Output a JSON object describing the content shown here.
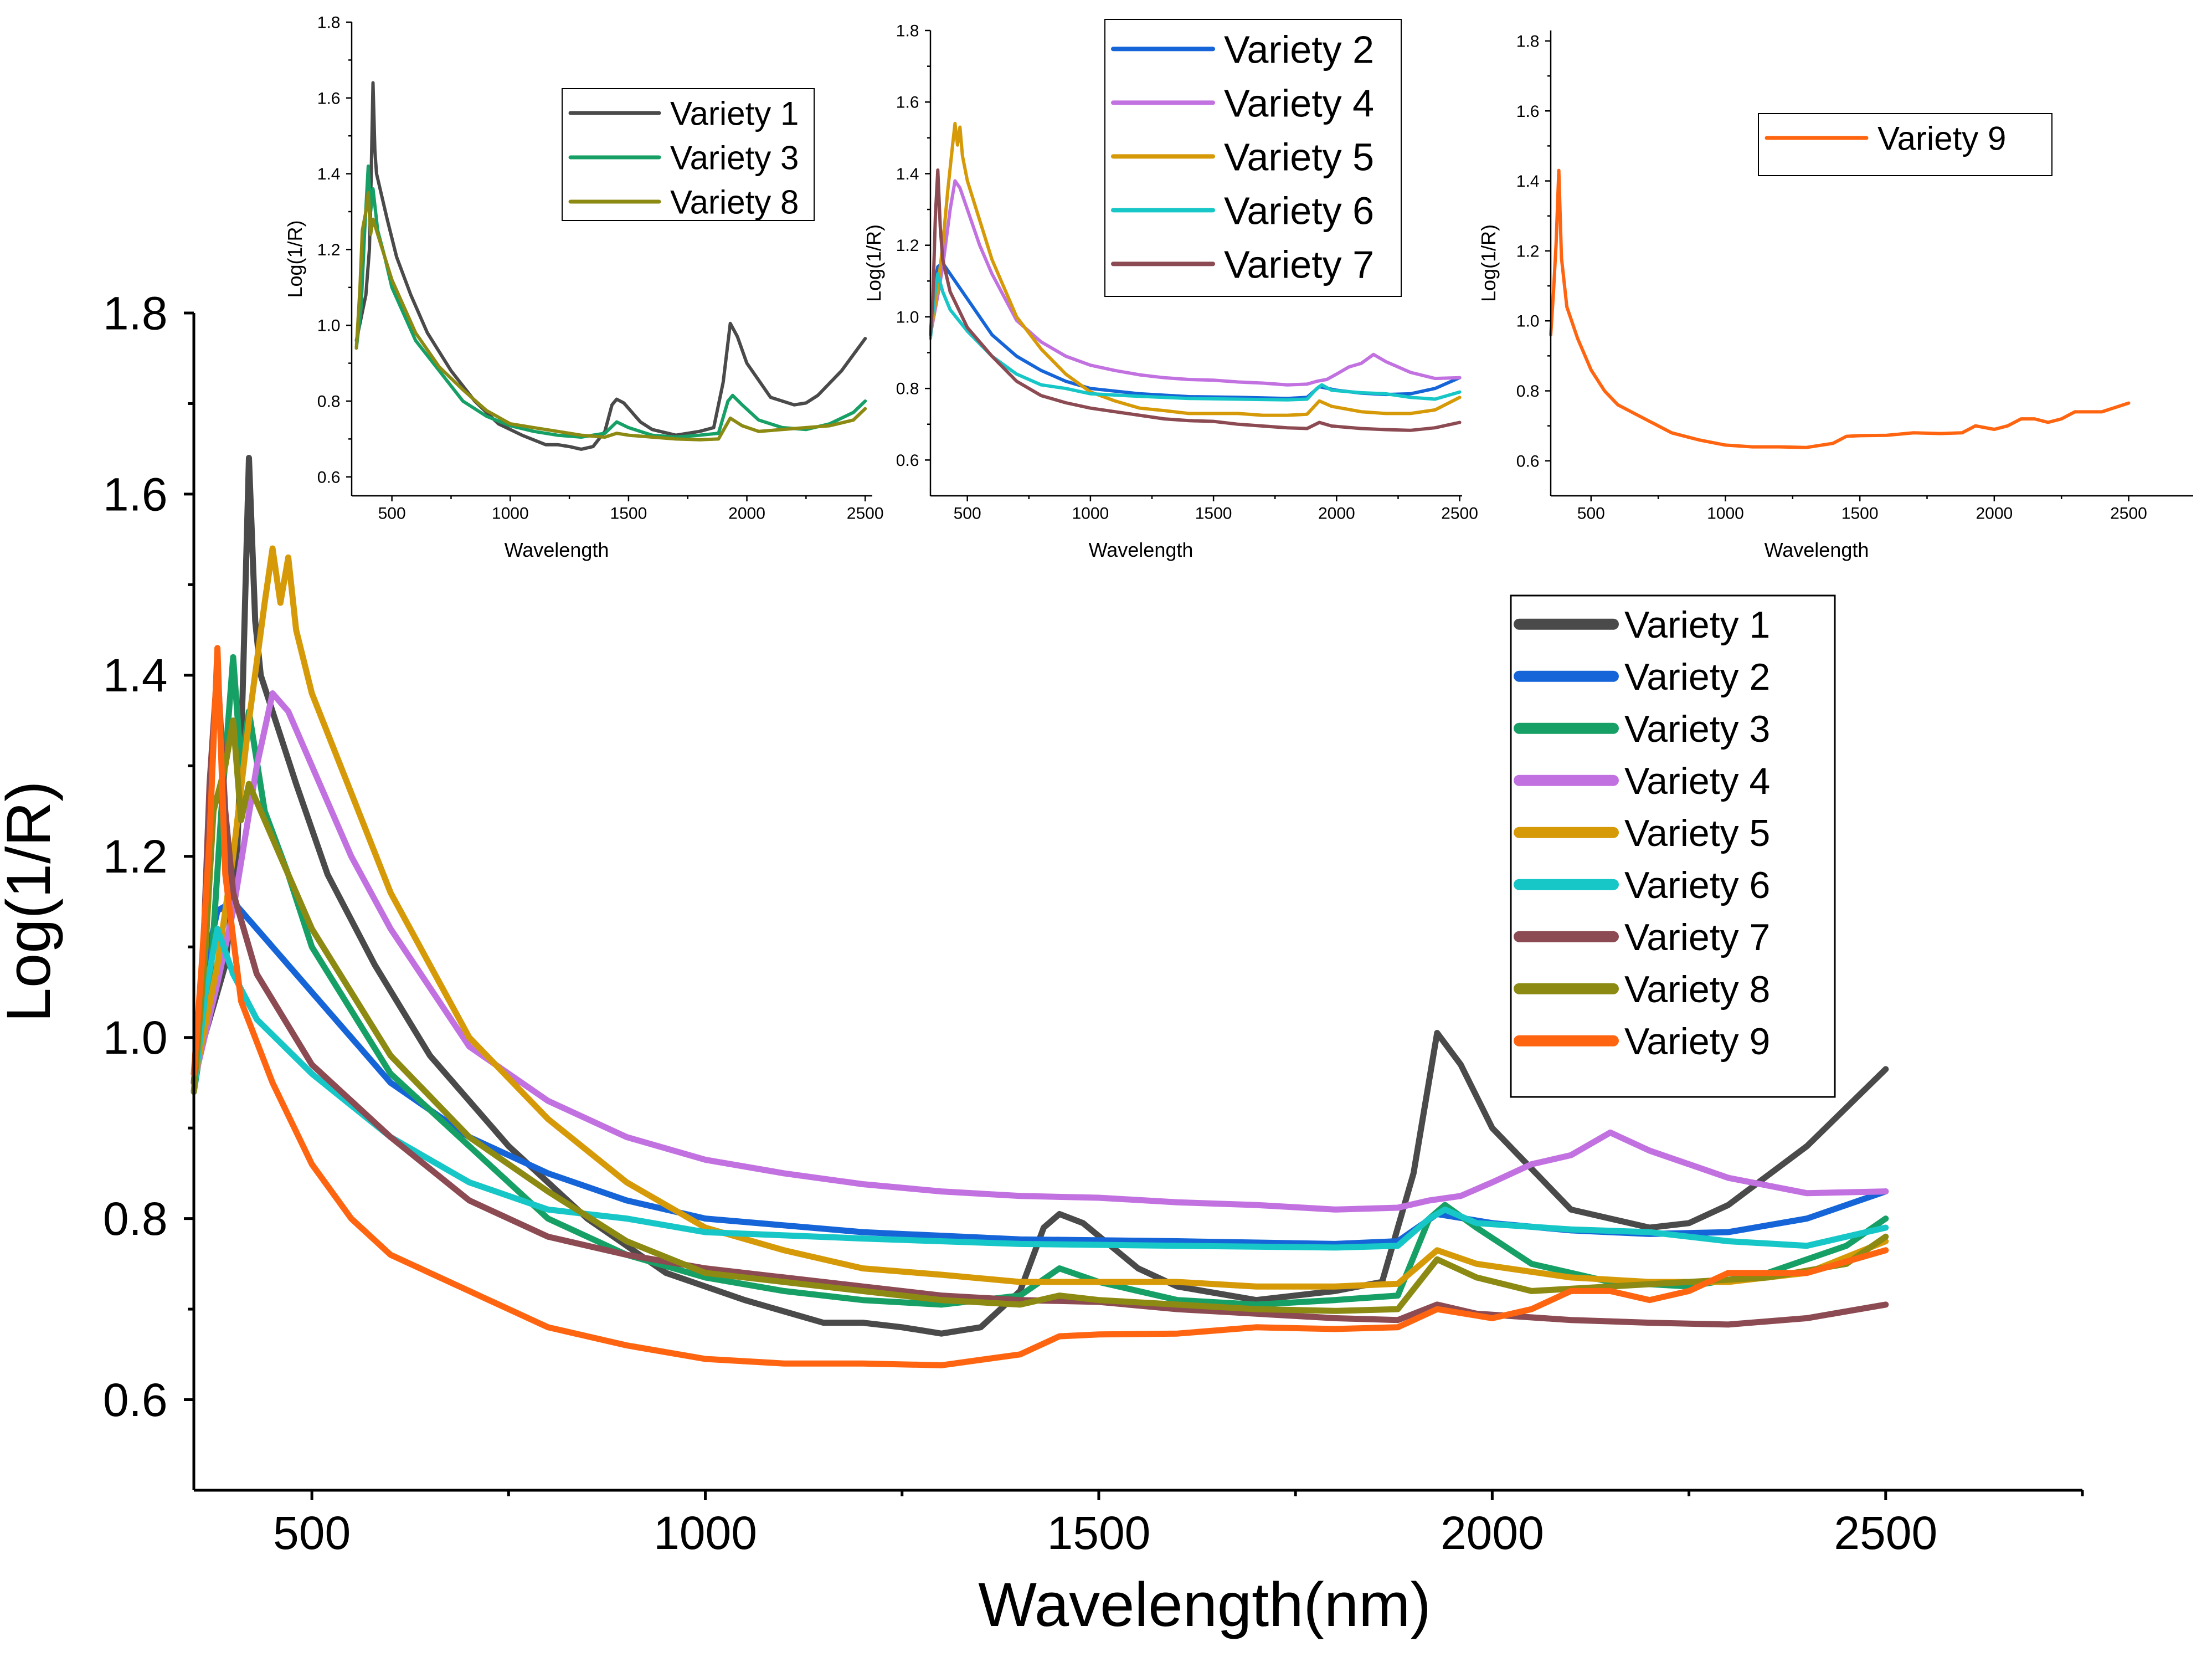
{
  "chart_data": [
    {
      "id": "main",
      "type": "line",
      "xlabel": "Wavelength(nm)",
      "ylabel": "Log(1/R)",
      "xlim": [
        350,
        2750
      ],
      "ylim": [
        0.5,
        1.8
      ],
      "xticks": [
        500,
        1000,
        1500,
        2000,
        2500
      ],
      "yticks": [
        0.6,
        0.8,
        1.0,
        1.2,
        1.4,
        1.6,
        1.8
      ],
      "xtick_labels": [
        "500",
        "1000",
        "1500",
        "2000",
        "2500"
      ],
      "ytick_labels": [
        "0.6",
        "0.8",
        "1.0",
        "1.2",
        "1.4",
        "1.6",
        "1.8"
      ],
      "legend_position": "right",
      "series": [
        "Variety 1",
        "Variety 2",
        "Variety 3",
        "Variety 4",
        "Variety 5",
        "Variety 6",
        "Variety 7",
        "Variety 8",
        "Variety 9"
      ]
    },
    {
      "id": "inset1",
      "type": "line",
      "xlabel": "Wavelength",
      "ylabel": "Log(1/R)",
      "xlim": [
        330,
        2530
      ],
      "ylim": [
        0.55,
        1.8
      ],
      "xticks": [
        500,
        1000,
        1500,
        2000,
        2500
      ],
      "yticks": [
        0.6,
        0.8,
        1.0,
        1.2,
        1.4,
        1.6,
        1.8
      ],
      "xtick_labels": [
        "500",
        "1000",
        "1500",
        "2000",
        "2500"
      ],
      "ytick_labels": [
        "0.6",
        "0.8",
        "1.0",
        "1.2",
        "1.4",
        "1.6",
        "1.8"
      ],
      "legend_position": "top-right",
      "series": [
        "Variety 1",
        "Variety 3",
        "Variety 8"
      ]
    },
    {
      "id": "inset2",
      "type": "line",
      "xlabel": "Wavelength",
      "ylabel": "Log(1/R)",
      "xlim": [
        350,
        2510
      ],
      "ylim": [
        0.5,
        1.8
      ],
      "xticks": [
        500,
        1000,
        1500,
        2000,
        2500
      ],
      "yticks": [
        0.6,
        0.8,
        1.0,
        1.2,
        1.4,
        1.6,
        1.8
      ],
      "xtick_labels": [
        "500",
        "1000",
        "1500",
        "2000",
        "2500"
      ],
      "ytick_labels": [
        "0.6",
        "0.8",
        "1.0",
        "1.2",
        "1.4",
        "1.6",
        "1.8"
      ],
      "legend_position": "top-right",
      "series": [
        "Variety 2",
        "Variety 4",
        "Variety 5",
        "Variety 6",
        "Variety 7"
      ]
    },
    {
      "id": "inset3",
      "type": "line",
      "xlabel": "Wavelength",
      "ylabel": "Log(1/R)",
      "xlim": [
        350,
        2740
      ],
      "ylim": [
        0.5,
        1.83
      ],
      "xticks": [
        500,
        1000,
        1500,
        2000,
        2500
      ],
      "yticks": [
        0.6,
        0.8,
        1.0,
        1.2,
        1.4,
        1.6,
        1.8
      ],
      "xtick_labels": [
        "500",
        "1000",
        "1500",
        "2000",
        "2500"
      ],
      "ytick_labels": [
        "0.6",
        "0.8",
        "1.0",
        "1.2",
        "1.4",
        "1.6",
        "1.8"
      ],
      "legend_position": "top-right",
      "series": [
        "Variety 9"
      ]
    }
  ],
  "series_data": {
    "Variety 1": {
      "color": "#4a4a4a",
      "points": [
        [
          350,
          0.96
        ],
        [
          370,
          1.02
        ],
        [
          390,
          1.08
        ],
        [
          405,
          1.2
        ],
        [
          412,
          1.38
        ],
        [
          420,
          1.64
        ],
        [
          428,
          1.46
        ],
        [
          435,
          1.4
        ],
        [
          450,
          1.36
        ],
        [
          480,
          1.28
        ],
        [
          520,
          1.18
        ],
        [
          580,
          1.08
        ],
        [
          650,
          0.98
        ],
        [
          750,
          0.88
        ],
        [
          850,
          0.8
        ],
        [
          950,
          0.74
        ],
        [
          1050,
          0.71
        ],
        [
          1150,
          0.685
        ],
        [
          1200,
          0.685
        ],
        [
          1250,
          0.68
        ],
        [
          1300,
          0.673
        ],
        [
          1350,
          0.68
        ],
        [
          1400,
          0.72
        ],
        [
          1430,
          0.79
        ],
        [
          1450,
          0.805
        ],
        [
          1480,
          0.795
        ],
        [
          1550,
          0.745
        ],
        [
          1600,
          0.725
        ],
        [
          1700,
          0.71
        ],
        [
          1800,
          0.72
        ],
        [
          1860,
          0.73
        ],
        [
          1900,
          0.85
        ],
        [
          1930,
          1.005
        ],
        [
          1960,
          0.97
        ],
        [
          2000,
          0.9
        ],
        [
          2100,
          0.81
        ],
        [
          2200,
          0.79
        ],
        [
          2250,
          0.795
        ],
        [
          2300,
          0.815
        ],
        [
          2400,
          0.88
        ],
        [
          2500,
          0.965
        ]
      ]
    },
    "Variety 2": {
      "color": "#1665d8",
      "points": [
        [
          350,
          0.95
        ],
        [
          365,
          1.08
        ],
        [
          380,
          1.14
        ],
        [
          400,
          1.15
        ],
        [
          440,
          1.11
        ],
        [
          500,
          1.05
        ],
        [
          600,
          0.95
        ],
        [
          700,
          0.89
        ],
        [
          800,
          0.85
        ],
        [
          900,
          0.82
        ],
        [
          1000,
          0.8
        ],
        [
          1200,
          0.785
        ],
        [
          1400,
          0.777
        ],
        [
          1600,
          0.775
        ],
        [
          1800,
          0.772
        ],
        [
          1880,
          0.775
        ],
        [
          1930,
          0.805
        ],
        [
          2000,
          0.795
        ],
        [
          2100,
          0.787
        ],
        [
          2200,
          0.783
        ],
        [
          2300,
          0.785
        ],
        [
          2400,
          0.8
        ],
        [
          2500,
          0.83
        ]
      ]
    },
    "Variety 3": {
      "color": "#17a066",
      "points": [
        [
          350,
          0.94
        ],
        [
          370,
          1.05
        ],
        [
          385,
          1.25
        ],
        [
          400,
          1.42
        ],
        [
          410,
          1.3
        ],
        [
          420,
          1.36
        ],
        [
          440,
          1.25
        ],
        [
          470,
          1.18
        ],
        [
          500,
          1.1
        ],
        [
          600,
          0.96
        ],
        [
          700,
          0.88
        ],
        [
          800,
          0.8
        ],
        [
          900,
          0.76
        ],
        [
          1000,
          0.735
        ],
        [
          1100,
          0.72
        ],
        [
          1200,
          0.71
        ],
        [
          1300,
          0.705
        ],
        [
          1400,
          0.715
        ],
        [
          1450,
          0.745
        ],
        [
          1500,
          0.73
        ],
        [
          1600,
          0.71
        ],
        [
          1700,
          0.705
        ],
        [
          1800,
          0.71
        ],
        [
          1880,
          0.715
        ],
        [
          1920,
          0.8
        ],
        [
          1940,
          0.815
        ],
        [
          1980,
          0.79
        ],
        [
          2050,
          0.75
        ],
        [
          2150,
          0.73
        ],
        [
          2250,
          0.725
        ],
        [
          2350,
          0.74
        ],
        [
          2450,
          0.77
        ],
        [
          2500,
          0.8
        ]
      ]
    },
    "Variety 4": {
      "color": "#c271e0",
      "points": [
        [
          350,
          0.95
        ],
        [
          380,
          1.06
        ],
        [
          400,
          1.14
        ],
        [
          430,
          1.3
        ],
        [
          450,
          1.38
        ],
        [
          470,
          1.36
        ],
        [
          500,
          1.3
        ],
        [
          550,
          1.2
        ],
        [
          600,
          1.12
        ],
        [
          700,
          0.99
        ],
        [
          800,
          0.93
        ],
        [
          900,
          0.89
        ],
        [
          1000,
          0.865
        ],
        [
          1100,
          0.85
        ],
        [
          1200,
          0.838
        ],
        [
          1300,
          0.83
        ],
        [
          1400,
          0.825
        ],
        [
          1500,
          0.823
        ],
        [
          1600,
          0.818
        ],
        [
          1700,
          0.815
        ],
        [
          1800,
          0.81
        ],
        [
          1880,
          0.812
        ],
        [
          1920,
          0.82
        ],
        [
          1960,
          0.825
        ],
        [
          2000,
          0.84
        ],
        [
          2050,
          0.86
        ],
        [
          2100,
          0.87
        ],
        [
          2150,
          0.895
        ],
        [
          2200,
          0.875
        ],
        [
          2250,
          0.86
        ],
        [
          2300,
          0.845
        ],
        [
          2400,
          0.828
        ],
        [
          2500,
          0.83
        ]
      ]
    },
    "Variety 5": {
      "color": "#d69a08",
      "points": [
        [
          350,
          0.95
        ],
        [
          380,
          1.08
        ],
        [
          400,
          1.2
        ],
        [
          420,
          1.35
        ],
        [
          440,
          1.48
        ],
        [
          450,
          1.54
        ],
        [
          460,
          1.48
        ],
        [
          470,
          1.53
        ],
        [
          480,
          1.45
        ],
        [
          500,
          1.38
        ],
        [
          550,
          1.27
        ],
        [
          600,
          1.16
        ],
        [
          700,
          1.0
        ],
        [
          800,
          0.91
        ],
        [
          900,
          0.84
        ],
        [
          1000,
          0.79
        ],
        [
          1100,
          0.765
        ],
        [
          1200,
          0.745
        ],
        [
          1300,
          0.738
        ],
        [
          1400,
          0.73
        ],
        [
          1500,
          0.73
        ],
        [
          1600,
          0.73
        ],
        [
          1700,
          0.725
        ],
        [
          1800,
          0.725
        ],
        [
          1880,
          0.728
        ],
        [
          1930,
          0.765
        ],
        [
          1980,
          0.75
        ],
        [
          2100,
          0.735
        ],
        [
          2200,
          0.73
        ],
        [
          2300,
          0.73
        ],
        [
          2400,
          0.74
        ],
        [
          2500,
          0.775
        ]
      ]
    },
    "Variety 6": {
      "color": "#17c6c6",
      "points": [
        [
          350,
          0.94
        ],
        [
          365,
          1.05
        ],
        [
          380,
          1.12
        ],
        [
          400,
          1.07
        ],
        [
          430,
          1.02
        ],
        [
          500,
          0.96
        ],
        [
          600,
          0.89
        ],
        [
          700,
          0.84
        ],
        [
          800,
          0.81
        ],
        [
          900,
          0.8
        ],
        [
          1000,
          0.785
        ],
        [
          1200,
          0.778
        ],
        [
          1400,
          0.772
        ],
        [
          1600,
          0.77
        ],
        [
          1800,
          0.768
        ],
        [
          1880,
          0.77
        ],
        [
          1920,
          0.8
        ],
        [
          1940,
          0.81
        ],
        [
          1980,
          0.795
        ],
        [
          2100,
          0.788
        ],
        [
          2200,
          0.785
        ],
        [
          2300,
          0.775
        ],
        [
          2400,
          0.77
        ],
        [
          2500,
          0.79
        ]
      ]
    },
    "Variety 7": {
      "color": "#8c4a52",
      "points": [
        [
          350,
          0.95
        ],
        [
          360,
          1.05
        ],
        [
          370,
          1.28
        ],
        [
          380,
          1.41
        ],
        [
          390,
          1.25
        ],
        [
          400,
          1.16
        ],
        [
          430,
          1.07
        ],
        [
          500,
          0.97
        ],
        [
          600,
          0.89
        ],
        [
          700,
          0.82
        ],
        [
          800,
          0.78
        ],
        [
          900,
          0.76
        ],
        [
          1000,
          0.745
        ],
        [
          1100,
          0.735
        ],
        [
          1200,
          0.725
        ],
        [
          1300,
          0.715
        ],
        [
          1400,
          0.71
        ],
        [
          1500,
          0.708
        ],
        [
          1600,
          0.7
        ],
        [
          1700,
          0.695
        ],
        [
          1800,
          0.69
        ],
        [
          1880,
          0.688
        ],
        [
          1930,
          0.705
        ],
        [
          1980,
          0.695
        ],
        [
          2100,
          0.688
        ],
        [
          2200,
          0.685
        ],
        [
          2300,
          0.683
        ],
        [
          2400,
          0.69
        ],
        [
          2500,
          0.705
        ]
      ]
    },
    "Variety 8": {
      "color": "#8c8a12",
      "points": [
        [
          350,
          0.94
        ],
        [
          365,
          1.1
        ],
        [
          375,
          1.25
        ],
        [
          390,
          1.3
        ],
        [
          400,
          1.35
        ],
        [
          410,
          1.24
        ],
        [
          420,
          1.28
        ],
        [
          440,
          1.24
        ],
        [
          460,
          1.2
        ],
        [
          500,
          1.12
        ],
        [
          600,
          0.98
        ],
        [
          700,
          0.89
        ],
        [
          800,
          0.83
        ],
        [
          900,
          0.775
        ],
        [
          1000,
          0.74
        ],
        [
          1100,
          0.73
        ],
        [
          1200,
          0.72
        ],
        [
          1300,
          0.71
        ],
        [
          1400,
          0.705
        ],
        [
          1450,
          0.715
        ],
        [
          1500,
          0.71
        ],
        [
          1600,
          0.705
        ],
        [
          1700,
          0.7
        ],
        [
          1800,
          0.698
        ],
        [
          1880,
          0.7
        ],
        [
          1930,
          0.755
        ],
        [
          1980,
          0.735
        ],
        [
          2050,
          0.72
        ],
        [
          2150,
          0.725
        ],
        [
          2250,
          0.73
        ],
        [
          2350,
          0.735
        ],
        [
          2450,
          0.75
        ],
        [
          2500,
          0.78
        ]
      ]
    },
    "Variety 9": {
      "color": "#ff6510",
      "points": [
        [
          350,
          0.96
        ],
        [
          360,
          1.08
        ],
        [
          370,
          1.22
        ],
        [
          380,
          1.43
        ],
        [
          390,
          1.18
        ],
        [
          410,
          1.04
        ],
        [
          450,
          0.95
        ],
        [
          500,
          0.86
        ],
        [
          550,
          0.8
        ],
        [
          600,
          0.76
        ],
        [
          700,
          0.72
        ],
        [
          800,
          0.68
        ],
        [
          900,
          0.66
        ],
        [
          1000,
          0.645
        ],
        [
          1100,
          0.64
        ],
        [
          1200,
          0.64
        ],
        [
          1300,
          0.638
        ],
        [
          1400,
          0.65
        ],
        [
          1450,
          0.67
        ],
        [
          1500,
          0.672
        ],
        [
          1600,
          0.673
        ],
        [
          1700,
          0.68
        ],
        [
          1800,
          0.678
        ],
        [
          1880,
          0.68
        ],
        [
          1930,
          0.7
        ],
        [
          2000,
          0.69
        ],
        [
          2050,
          0.7
        ],
        [
          2100,
          0.72
        ],
        [
          2150,
          0.72
        ],
        [
          2200,
          0.71
        ],
        [
          2250,
          0.72
        ],
        [
          2300,
          0.74
        ],
        [
          2400,
          0.74
        ],
        [
          2500,
          0.765
        ]
      ]
    }
  }
}
